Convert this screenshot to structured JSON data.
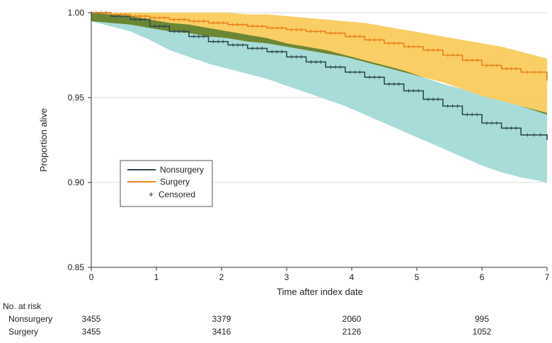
{
  "chart_data": {
    "type": "line",
    "title": "",
    "xlabel": "Time after index date",
    "ylabel": "Proportion alive",
    "xlim": [
      0,
      7
    ],
    "ylim": [
      0.85,
      1.0
    ],
    "x_ticks": [
      "0",
      "1",
      "2",
      "3",
      "4",
      "5",
      "6",
      "7"
    ],
    "y_ticks": [
      "0.85",
      "0.90",
      "0.95",
      "1.00"
    ],
    "grid": "horizontal",
    "legend_position": "middle-left",
    "legend": {
      "nonsurgery": "Nonsurgery",
      "surgery": "Surgery",
      "censored": "Censored",
      "censored_symbol": "+"
    },
    "series": [
      {
        "name": "Nonsurgery",
        "color": "#2e4a4f",
        "band_color": "#a8dcd9",
        "x": [
          0,
          0.3,
          0.6,
          0.9,
          1.2,
          1.5,
          1.8,
          2.1,
          2.4,
          2.7,
          3.0,
          3.3,
          3.6,
          3.9,
          4.2,
          4.5,
          4.8,
          5.1,
          5.4,
          5.7,
          6.0,
          6.3,
          6.6,
          7.0
        ],
        "values": [
          1.0,
          0.998,
          0.996,
          0.992,
          0.989,
          0.986,
          0.983,
          0.981,
          0.979,
          0.977,
          0.974,
          0.971,
          0.968,
          0.965,
          0.962,
          0.958,
          0.954,
          0.949,
          0.945,
          0.94,
          0.935,
          0.932,
          0.928,
          0.925
        ],
        "lower": [
          0.995,
          0.992,
          0.989,
          0.984,
          0.978,
          0.974,
          0.97,
          0.967,
          0.964,
          0.961,
          0.957,
          0.953,
          0.949,
          0.945,
          0.94,
          0.935,
          0.93,
          0.925,
          0.92,
          0.915,
          0.91,
          0.906,
          0.903,
          0.9
        ],
        "upper": [
          1.0,
          0.999,
          0.998,
          0.996,
          0.994,
          0.993,
          0.991,
          0.989,
          0.987,
          0.985,
          0.982,
          0.98,
          0.978,
          0.975,
          0.972,
          0.969,
          0.966,
          0.962,
          0.958,
          0.955,
          0.951,
          0.948,
          0.945,
          0.941
        ]
      },
      {
        "name": "Surgery",
        "color": "#e8831b",
        "band_color": "#f8c64a",
        "x": [
          0,
          0.3,
          0.6,
          0.9,
          1.2,
          1.5,
          1.8,
          2.1,
          2.4,
          2.7,
          3.0,
          3.3,
          3.6,
          3.9,
          4.2,
          4.5,
          4.8,
          5.1,
          5.4,
          5.7,
          6.0,
          6.3,
          6.6,
          7.0
        ],
        "values": [
          1.0,
          0.999,
          0.998,
          0.997,
          0.996,
          0.995,
          0.994,
          0.993,
          0.992,
          0.991,
          0.99,
          0.989,
          0.988,
          0.986,
          0.984,
          0.982,
          0.98,
          0.978,
          0.975,
          0.972,
          0.969,
          0.967,
          0.965,
          0.96
        ],
        "lower": [
          0.995,
          0.994,
          0.993,
          0.991,
          0.989,
          0.988,
          0.986,
          0.985,
          0.983,
          0.982,
          0.98,
          0.978,
          0.976,
          0.974,
          0.971,
          0.968,
          0.965,
          0.962,
          0.959,
          0.955,
          0.951,
          0.948,
          0.945,
          0.94
        ],
        "upper": [
          1.0,
          1.0,
          1.0,
          1.0,
          1.0,
          1.0,
          1.0,
          1.0,
          0.999,
          0.999,
          0.998,
          0.997,
          0.996,
          0.995,
          0.994,
          0.992,
          0.99,
          0.988,
          0.986,
          0.984,
          0.982,
          0.98,
          0.977,
          0.973
        ]
      }
    ],
    "overlap_color": "#5e7f30",
    "risk_table": {
      "header": "No. at risk",
      "x_positions": [
        0,
        2,
        4,
        6
      ],
      "rows": [
        {
          "label": "Nonsurgery",
          "values": [
            "3455",
            "3379",
            "2060",
            "995"
          ]
        },
        {
          "label": "Surgery",
          "values": [
            "3455",
            "3416",
            "2126",
            "1052"
          ]
        }
      ]
    }
  }
}
